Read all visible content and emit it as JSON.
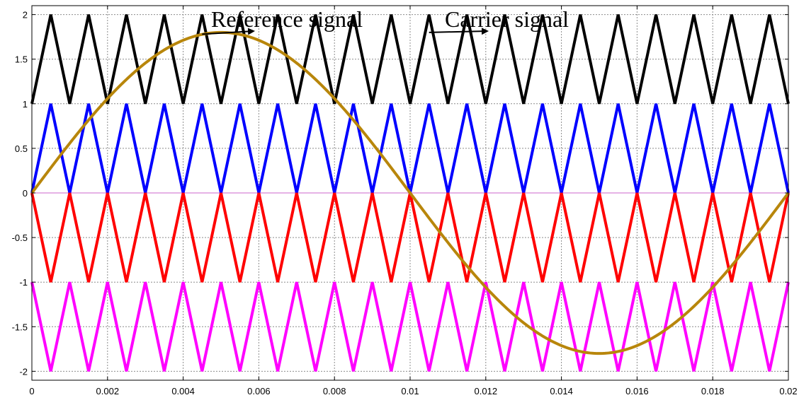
{
  "chart_data": {
    "type": "line",
    "title": "",
    "xlabel": "",
    "ylabel": "",
    "xlim": [
      0,
      0.02
    ],
    "ylim": [
      -2.1,
      2.1
    ],
    "grid": true,
    "x_ticks": [
      0,
      0.002,
      0.004,
      0.006,
      0.008,
      0.01,
      0.012,
      0.014,
      0.016,
      0.018,
      0.02
    ],
    "x_tick_labels": [
      "0",
      "0.002",
      "0.004",
      "0.006",
      "0.008",
      "0.01",
      "0.012",
      "0.014",
      "0.016",
      "0.018",
      "0.02"
    ],
    "y_ticks": [
      2,
      1.5,
      1,
      0.5,
      0,
      -0.5,
      -1,
      -1.5,
      -2
    ],
    "y_tick_labels": [
      "2",
      "1.5",
      "1",
      "0.5",
      "0",
      "-0.5",
      "-1",
      "-1.5",
      "-2"
    ],
    "annotations": [
      {
        "text": "Reference signal",
        "points_to": {
          "x": 0.0045,
          "y": 1.78
        }
      },
      {
        "text": "Carrier signal",
        "points_to": {
          "x": 0.0105,
          "y": 1.8
        }
      }
    ],
    "series": [
      {
        "color": "#000000",
        "type": "triangle",
        "period": 0.001,
        "min": 1,
        "max": 2,
        "start": 1
      },
      {
        "color": "#0000ff",
        "type": "triangle",
        "period": 0.001,
        "min": 0,
        "max": 1,
        "start": 0
      },
      {
        "color": "#ff0000",
        "type": "triangle",
        "period": 0.001,
        "min": -1,
        "max": 0,
        "start": 0
      },
      {
        "color": "#ff00ff",
        "type": "triangle",
        "period": 0.001,
        "min": -2,
        "max": -1,
        "start": -1
      },
      {
        "color": "#b8860b",
        "type": "sine",
        "amplitude": 1.8,
        "frequency": 50
      }
    ]
  }
}
